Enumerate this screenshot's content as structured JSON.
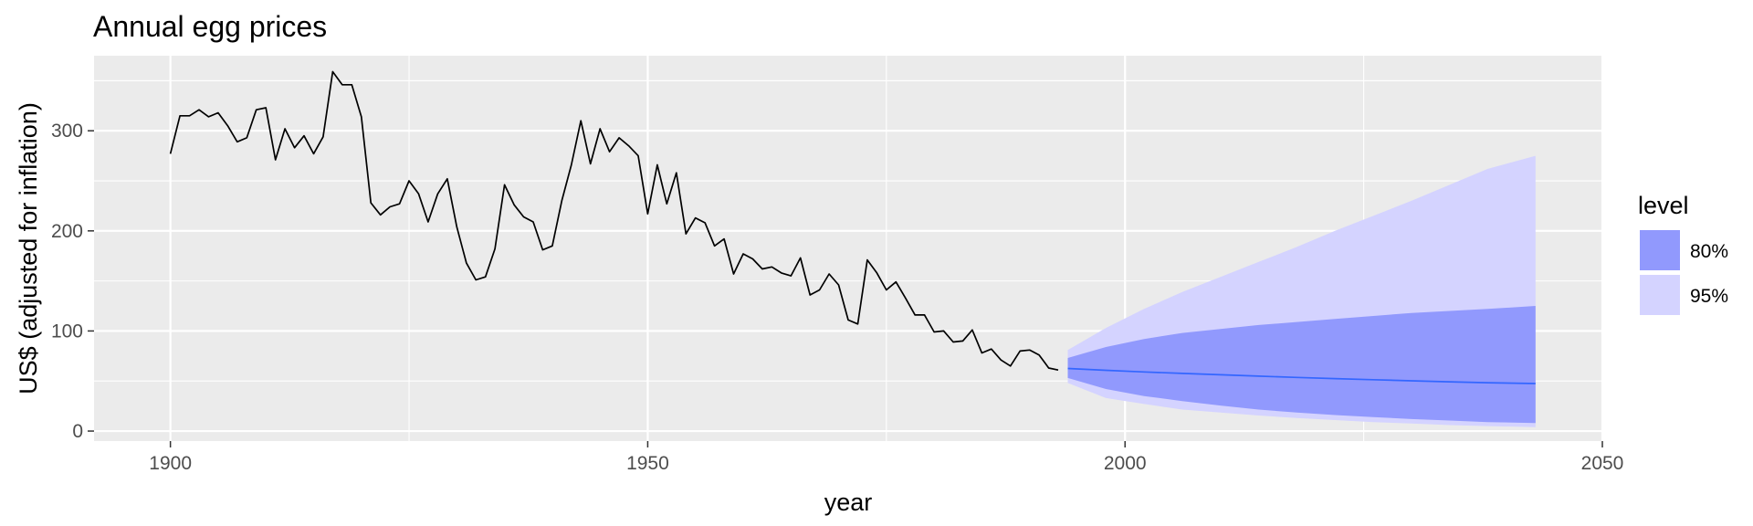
{
  "chart_data": {
    "type": "line",
    "title": "Annual egg prices",
    "xlabel": "year",
    "ylabel": "US$ (adjusted for inflation)",
    "xlim": [
      1892,
      2050
    ],
    "ylim": [
      -10,
      375
    ],
    "xticks": [
      1900,
      1950,
      2000,
      2050
    ],
    "yticks": [
      0,
      100,
      200,
      300
    ],
    "grid": true,
    "legend": {
      "title": "level",
      "position": "right",
      "entries": [
        "80%",
        "95%"
      ]
    },
    "colors": {
      "panel": "#ebebeb",
      "grid": "#ffffff",
      "history": "#000000",
      "forecast": "#3366ff",
      "band80": "#9199fd",
      "band95": "#d4d3ff",
      "tick": "#4d4d4d"
    },
    "history": {
      "x": [
        1900,
        1901,
        1902,
        1903,
        1904,
        1905,
        1906,
        1907,
        1908,
        1909,
        1910,
        1911,
        1912,
        1913,
        1914,
        1915,
        1916,
        1917,
        1918,
        1919,
        1920,
        1921,
        1922,
        1923,
        1924,
        1925,
        1926,
        1927,
        1928,
        1929,
        1930,
        1931,
        1932,
        1933,
        1934,
        1935,
        1936,
        1937,
        1938,
        1939,
        1940,
        1941,
        1942,
        1943,
        1944,
        1945,
        1946,
        1947,
        1948,
        1949,
        1950,
        1951,
        1952,
        1953,
        1954,
        1955,
        1956,
        1957,
        1958,
        1959,
        1960,
        1961,
        1962,
        1963,
        1964,
        1965,
        1966,
        1967,
        1968,
        1969,
        1970,
        1971,
        1972,
        1973,
        1974,
        1975,
        1976,
        1977,
        1978,
        1979,
        1980,
        1981,
        1982,
        1983,
        1984,
        1985,
        1986,
        1987,
        1988,
        1989,
        1990,
        1991,
        1992,
        1993
      ],
      "y": [
        277,
        315,
        315,
        321,
        314,
        318,
        305,
        289,
        293,
        321,
        323,
        271,
        302,
        283,
        295,
        277,
        294,
        359,
        346,
        346,
        314,
        228,
        216,
        224,
        227,
        250,
        237,
        209,
        237,
        252,
        204,
        168,
        151,
        154,
        182,
        246,
        226,
        214,
        209,
        181,
        185,
        230,
        266,
        310,
        267,
        302,
        279,
        293,
        285,
        275,
        217,
        266,
        227,
        258,
        197,
        213,
        208,
        185,
        192,
        157,
        177,
        172,
        162,
        164,
        158,
        155,
        173,
        136,
        141,
        157,
        146,
        111,
        107,
        171,
        158,
        141,
        149,
        133,
        116,
        116,
        99,
        100,
        89,
        90,
        101,
        78,
        82,
        71,
        65,
        80,
        81,
        76,
        63,
        61
      ]
    },
    "forecast": {
      "x": [
        1994,
        1998,
        2002,
        2006,
        2010,
        2014,
        2018,
        2022,
        2026,
        2030,
        2034,
        2038,
        2043
      ],
      "mean": [
        62.5,
        60.7,
        59.1,
        57.6,
        56.2,
        54.9,
        53.6,
        52.4,
        51.3,
        50.2,
        49.2,
        48.3,
        47.5
      ],
      "lo80": [
        53,
        42,
        35,
        30,
        25.5,
        21.5,
        18.5,
        16,
        14,
        12,
        10.5,
        9,
        8
      ],
      "hi80": [
        73,
        84,
        92,
        98,
        102,
        106,
        109,
        112,
        115,
        118,
        120,
        122,
        125
      ],
      "lo95": [
        48,
        33,
        27,
        21.5,
        18.5,
        15.5,
        13,
        11,
        9,
        7.5,
        6,
        5,
        4
      ],
      "hi95": [
        81,
        103,
        122,
        139,
        154,
        169,
        184,
        200,
        215,
        230,
        246,
        262,
        275
      ]
    }
  }
}
